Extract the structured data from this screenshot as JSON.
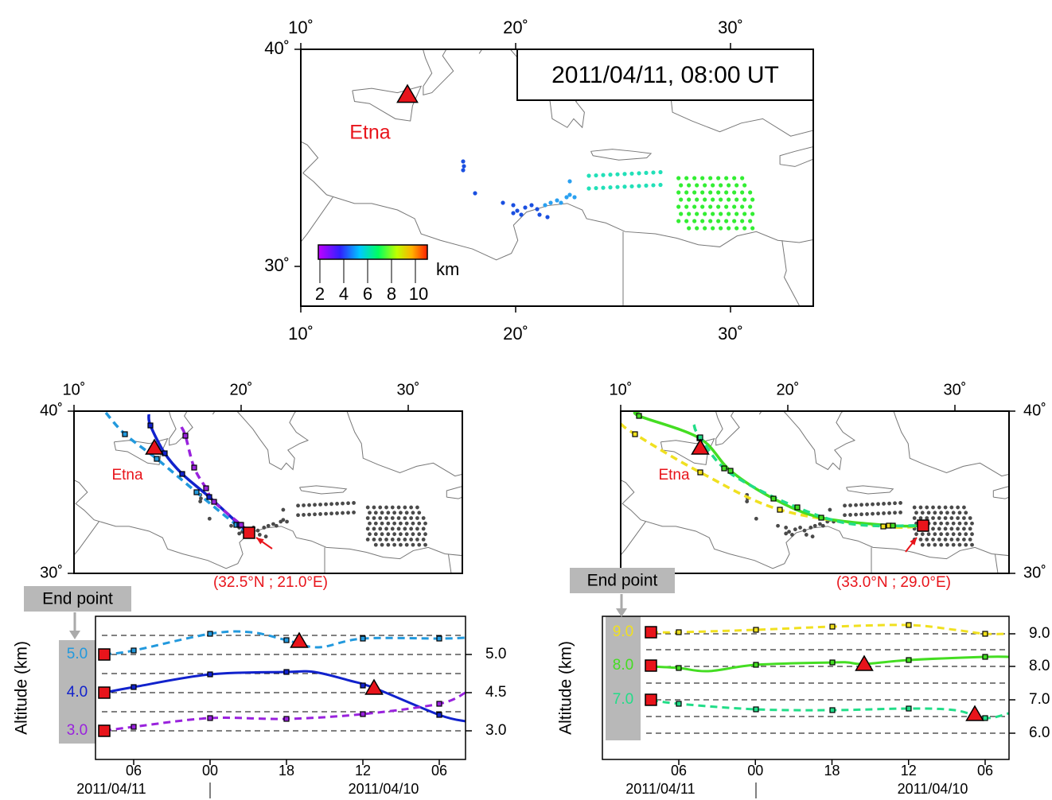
{
  "top_map": {
    "title": "2011/04/11, 08:00 UT",
    "volcano_label": "Etna",
    "lon_ticks": [
      {
        "value": 10,
        "label": "10˚"
      },
      {
        "value": 20,
        "label": "20˚"
      },
      {
        "value": 30,
        "label": "30˚"
      }
    ],
    "lat_ticks": [
      {
        "value": 40,
        "label": "40˚"
      },
      {
        "value": 30,
        "label": "30˚"
      }
    ],
    "colorbar": {
      "ticks": [
        2,
        4,
        6,
        8,
        10
      ],
      "unit": "km"
    }
  },
  "left_panel": {
    "volcano_label": "Etna",
    "lon_ticks": [
      {
        "value": 10,
        "label": "10˚"
      },
      {
        "value": 20,
        "label": "20˚"
      },
      {
        "value": 30,
        "label": "30˚"
      }
    ],
    "lat_ticks": [
      {
        "value": 40,
        "label": "40˚"
      },
      {
        "value": 30,
        "label": "30˚"
      }
    ],
    "end_point_label": "End point",
    "end_point_coords": "(32.5°N ; 21.0°E)",
    "altitude": {
      "axis_label": "Altitude (km)",
      "start_labels": [
        {
          "value": 5,
          "label": "5.0"
        },
        {
          "value": 4,
          "label": "4.0"
        },
        {
          "value": 3,
          "label": "3.0"
        }
      ],
      "right_ticks": [
        {
          "value": 5,
          "label": "5.0"
        },
        {
          "value": 4.5,
          "label": "4.5"
        },
        {
          "value": 3,
          "label": "3.0"
        }
      ],
      "time_labels": [
        "06",
        "00",
        "18",
        "12",
        "06"
      ],
      "dates": [
        "2011/04/11",
        "2011/04/10"
      ]
    }
  },
  "right_panel": {
    "volcano_label": "Etna",
    "lon_ticks": [
      {
        "value": 10,
        "label": "10˚"
      },
      {
        "value": 20,
        "label": "20˚"
      },
      {
        "value": 30,
        "label": "30˚"
      }
    ],
    "lat_ticks": [
      {
        "value": 40,
        "label": "40˚"
      },
      {
        "value": 30,
        "label": "30˚"
      }
    ],
    "end_point_label": "End point",
    "end_point_coords": "(33.0°N ; 29.0°E)",
    "altitude": {
      "axis_label": "Altitude (km)",
      "start_labels": [
        {
          "value": 9,
          "label": "9.0"
        },
        {
          "value": 8,
          "label": "8.0"
        },
        {
          "value": 7,
          "label": "7.0"
        }
      ],
      "right_ticks": [
        {
          "value": 9,
          "label": "9.0"
        },
        {
          "value": 8,
          "label": "8.0"
        },
        {
          "value": 7,
          "label": "7.0"
        },
        {
          "value": 6,
          "label": "6.0"
        }
      ],
      "time_labels": [
        "06",
        "00",
        "18",
        "12",
        "06"
      ],
      "dates": [
        "2011/04/11",
        "2011/04/10"
      ]
    }
  }
}
